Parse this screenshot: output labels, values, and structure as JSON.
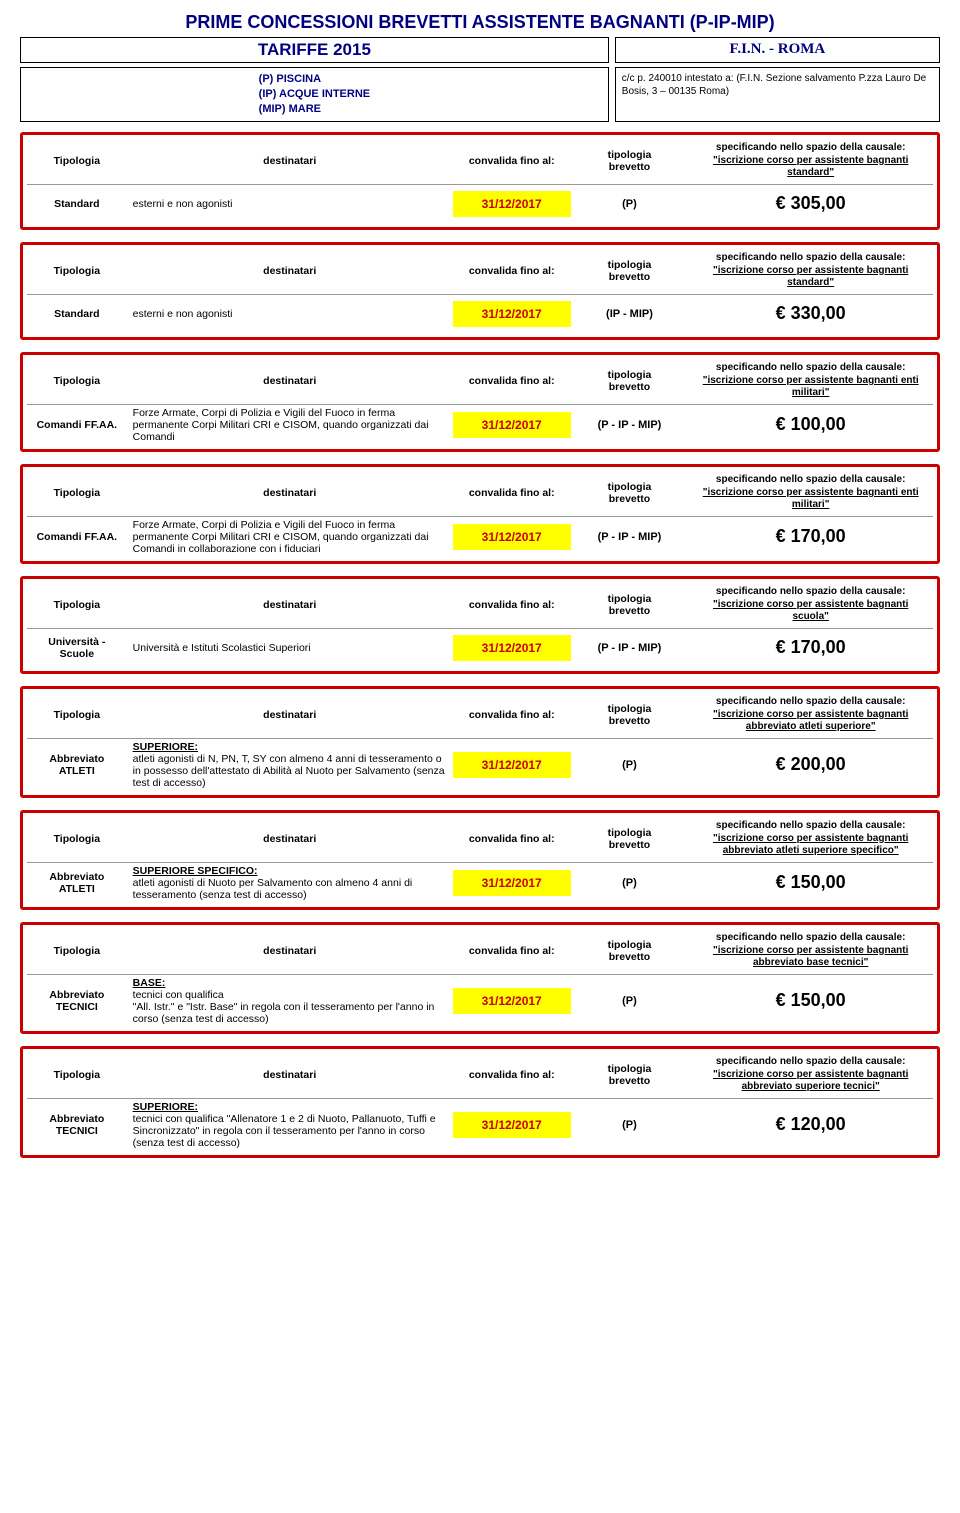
{
  "title": "PRIME CONCESSIONI BREVETTI ASSISTENTE BAGNANTI (P-IP-MIP)",
  "tariffe": "TARIFFE 2015",
  "fin": "F.I.N. - ROMA",
  "legend": {
    "l1": "(P) PISCINA",
    "l2": "(IP) ACQUE INTERNE",
    "l3": "(MIP) MARE"
  },
  "payment": {
    "l1": "c/c p. 240010 intestato a: (F.I.N. Sezione salvamento P.zza Lauro De Bosis, 3 – 00135 Roma)"
  },
  "headers": {
    "tipologia": "Tipologia",
    "destinatari": "destinatari",
    "convalida": "convalida fino al:",
    "brevetto_l1": "tipologia",
    "brevetto_l2": "brevetto",
    "causale_pre": "specificando nello spazio della causale:"
  },
  "causali": {
    "standard": "\"iscrizione corso per assistente bagnanti standard\"",
    "militari": "\"iscrizione corso per assistente bagnanti enti militari\"",
    "scuola": "\"iscrizione corso per assistente bagnanti scuola\"",
    "atleti_sup": "\"iscrizione corso per assistente bagnanti abbreviato atleti superiore\"",
    "atleti_spec": "\"iscrizione corso per assistente bagnanti abbreviato atleti superiore specifico\"",
    "tecnici_base": "\"iscrizione corso per  assistente bagnanti abbreviato base tecnici\"",
    "tecnici_sup": "\"iscrizione corso per  assistente bagnanti abbreviato superiore tecnici\""
  },
  "rows": {
    "r1": {
      "tip": "Standard",
      "dest": "esterni e non agonisti",
      "date": "31/12/2017",
      "brev": "(P)",
      "price": "€ 305,00"
    },
    "r2": {
      "tip": "Standard",
      "dest": "esterni e non agonisti",
      "date": "31/12/2017",
      "brev": "(IP - MIP)",
      "price": "€ 330,00"
    },
    "r3": {
      "tip": "Comandi FF.AA.",
      "dest": "Forze Armate, Corpi di Polizia e Vigili del Fuoco in ferma permanente Corpi Militari CRI e CISOM, quando organizzati dai Comandi",
      "date": "31/12/2017",
      "brev": "(P - IP - MIP)",
      "price": "€ 100,00"
    },
    "r4": {
      "tip": "Comandi FF.AA.",
      "dest": "Forze Armate, Corpi di Polizia e Vigili del Fuoco in ferma permanente Corpi Militari CRI e CISOM, quando organizzati dai Comandi in collaborazione con i fiduciari",
      "date": "31/12/2017",
      "brev": "(P - IP - MIP)",
      "price": "€ 170,00"
    },
    "r5": {
      "tip": "Università - Scuole",
      "dest": "Università e Istituti Scolastici Superiori",
      "date": "31/12/2017",
      "brev": "(P - IP - MIP)",
      "price": "€ 170,00"
    },
    "r6": {
      "tip": "Abbreviato ATLETI",
      "dest_head": "SUPERIORE:",
      "dest": "atleti agonisti di N, PN, T, SY con almeno 4 anni di tesseramento o in possesso dell'attestato di Abilità al Nuoto per Salvamento (senza test di accesso)",
      "date": "31/12/2017",
      "brev": "(P)",
      "price": "€ 200,00"
    },
    "r7": {
      "tip": "Abbreviato ATLETI",
      "dest_head": "SUPERIORE SPECIFICO:",
      "dest": "atleti agonisti di Nuoto per Salvamento con almeno 4 anni di tesseramento (senza test di accesso)",
      "date": "31/12/2017",
      "brev": "(P)",
      "price": "€ 150,00"
    },
    "r8": {
      "tip": "Abbreviato TECNICI",
      "dest_head": "BASE:",
      "dest": "tecnici con qualifica\n\"All. Istr.\" e \"Istr. Base\" in regola con il tesseramento per l'anno in corso (senza test di accesso)",
      "date": "31/12/2017",
      "brev": "(P)",
      "price": "€ 150,00"
    },
    "r9": {
      "tip": "Abbreviato TECNICI",
      "dest_head": "SUPERIORE:",
      "dest": "tecnici con qualifica \"Allenatore 1 e 2 di Nuoto, Pallanuoto, Tuffi e Sincronizzato\" in regola con il tesseramento per l'anno in corso (senza test di accesso)",
      "date": "31/12/2017",
      "brev": "(P)",
      "price": "€ 120,00"
    }
  },
  "styling": {
    "border_color": "#cc0000",
    "highlight_bg": "#ffff00",
    "title_color": "#000080",
    "body_font": "Arial",
    "title_fontsize": 18,
    "price_fontsize": 18,
    "date_color": "#cc0000"
  }
}
